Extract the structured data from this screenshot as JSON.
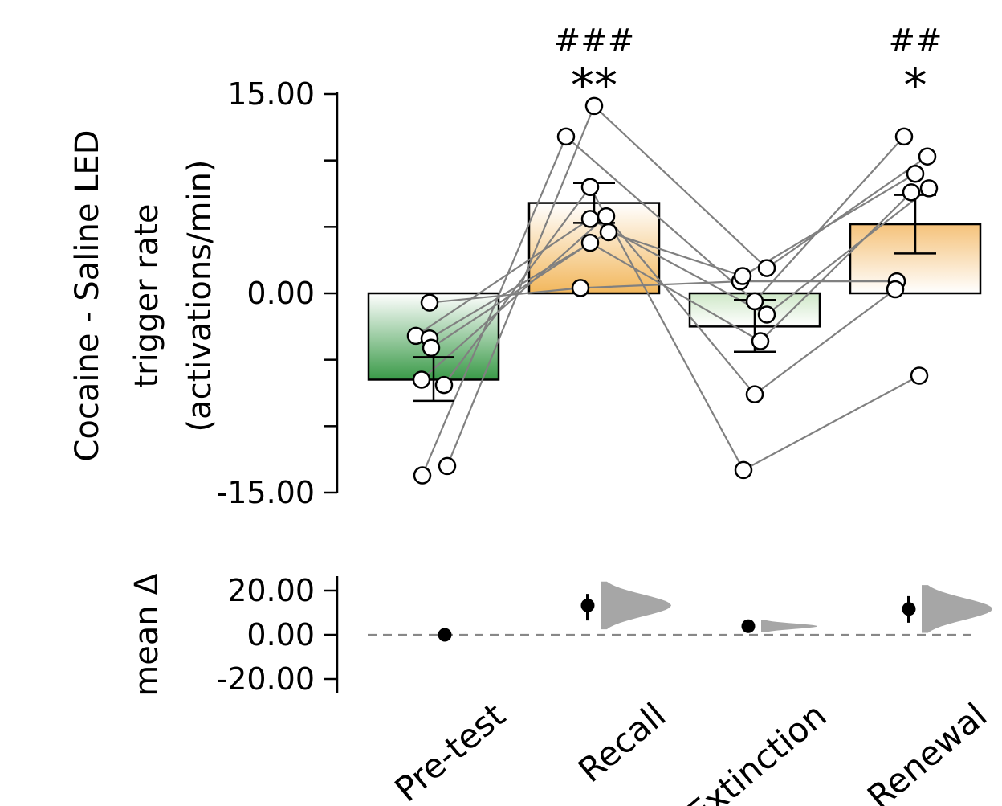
{
  "chart_data": [
    {
      "type": "bar",
      "categories": [
        "Pre-test",
        "Recall",
        "Extinction",
        "Renewal"
      ],
      "ylabel_lines": [
        "Cocaine - Saline LED",
        "trigger rate",
        "(activations/min)"
      ],
      "ylim": [
        -15,
        15
      ],
      "yticks": [
        15,
        10,
        5,
        0,
        -5,
        -10,
        -15
      ],
      "ytick_labels": [
        "15.00",
        "",
        "",
        "0.00",
        "",
        "",
        "-15.00"
      ],
      "bar_values": [
        -6.5,
        6.8,
        -2.5,
        5.2
      ],
      "bar_colors": [
        {
          "top": "#ffffff",
          "bottom": "#3a9a48"
        },
        {
          "top": "#ffffff",
          "bottom": "#f2b75c"
        },
        {
          "top": "#cfe8c8",
          "bottom": "#ffffff"
        },
        {
          "top": "#f5c27a",
          "bottom": "#ffffff"
        }
      ],
      "error_bars": [
        {
          "lower": -8.1,
          "upper": -4.8
        },
        {
          "lower": 5.3,
          "upper": 8.3
        },
        {
          "lower": -4.4,
          "upper": -0.5
        },
        {
          "lower": 3.0,
          "upper": 7.4
        }
      ],
      "significance": [
        {
          "category": "Recall",
          "stars": "**",
          "hashes": "###"
        },
        {
          "category": "Renewal",
          "stars": "*",
          "hashes": "##"
        }
      ],
      "subjects": [
        [
          -13.7,
          11.8,
          -0.6,
          11.8
        ],
        [
          -13.0,
          14.1,
          1.9,
          10.3
        ],
        [
          -0.7,
          0.4,
          0.9,
          0.9
        ],
        [
          -3.2,
          5.6,
          -1.6,
          7.9
        ],
        [
          -3.4,
          4.6,
          1.3,
          9.0
        ],
        [
          -4.1,
          3.8,
          -3.6,
          7.6
        ],
        [
          -6.5,
          5.8,
          -7.6,
          0.3
        ],
        [
          -6.9,
          8.0,
          -13.3,
          -6.2
        ]
      ]
    },
    {
      "type": "scatter",
      "ylabel": "mean Δ",
      "ylim": [
        -28,
        28
      ],
      "yticks": [
        20,
        0,
        -20
      ],
      "ytick_labels": [
        "20.00",
        "0.00",
        "-20.00"
      ],
      "categories": [
        "Pre-test",
        "Recall",
        "Extinction",
        "Renewal"
      ],
      "mean_diff": [
        0,
        13.3,
        3.9,
        11.7
      ],
      "ci": [
        null,
        [
          6.5,
          18.5
        ],
        [
          2.5,
          5.5
        ],
        [
          5.5,
          17.5
        ]
      ],
      "distribution_color": "#a6a6a6"
    }
  ]
}
